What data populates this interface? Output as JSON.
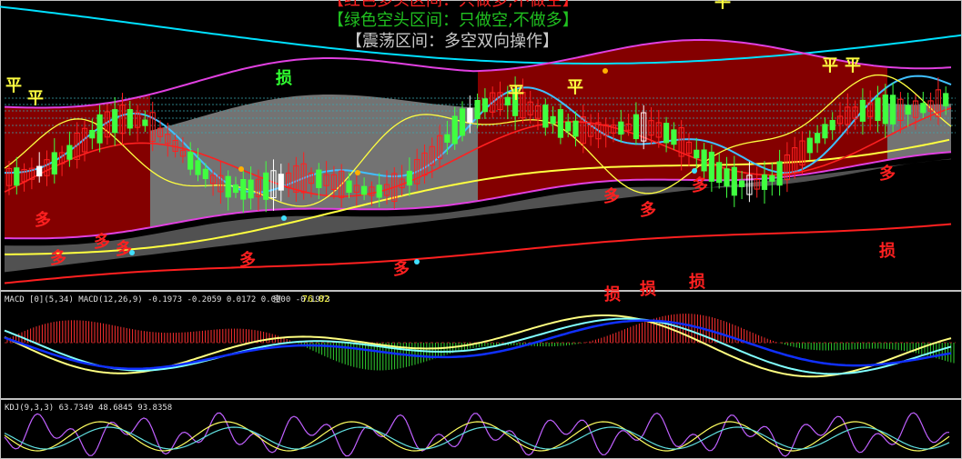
{
  "legend": {
    "line1": "【红色多头区间：只做多,不做空】",
    "line2": "【绿色空头区间：只做空,不做多】",
    "line3": "【震荡区间：多空双向操作】",
    "color1": "#ff2020",
    "color2": "#20c020",
    "color3": "#c8c8c8"
  },
  "signals": {
    "ping": "平",
    "duo": "多",
    "sun": "损",
    "kong": "空"
  },
  "macd_panel": {
    "label": "MACD [0](5,34)  MACD(12,26,9) -0.1973 -0.2059 0.0172 0.0000 -0.1973",
    "kong_value": "76.82"
  },
  "kdj_panel": {
    "label": "KDJ(9,3,3) 63.7349 48.6845 93.8358"
  },
  "colors": {
    "bull_zone": "#8b0000",
    "range_zone": "#9a9a9a",
    "band_line": "#e040e0",
    "up_candle": "#ff2020",
    "down_candle": "#40ff40",
    "doji": "#ffffff",
    "ma_fast": "#40c0ff",
    "ma_mid": "#ffff40",
    "ma_slow": "#ff2020",
    "outer_band": "#00e0ff",
    "macd_dif": "#ffff80",
    "macd_dea": "#80ffff"
  },
  "chart_data": {
    "type": "candlestick",
    "note_series": "price candles with moving averages and trading-zone shading",
    "zones": [
      "bull",
      "range",
      "bull",
      "range"
    ]
  }
}
